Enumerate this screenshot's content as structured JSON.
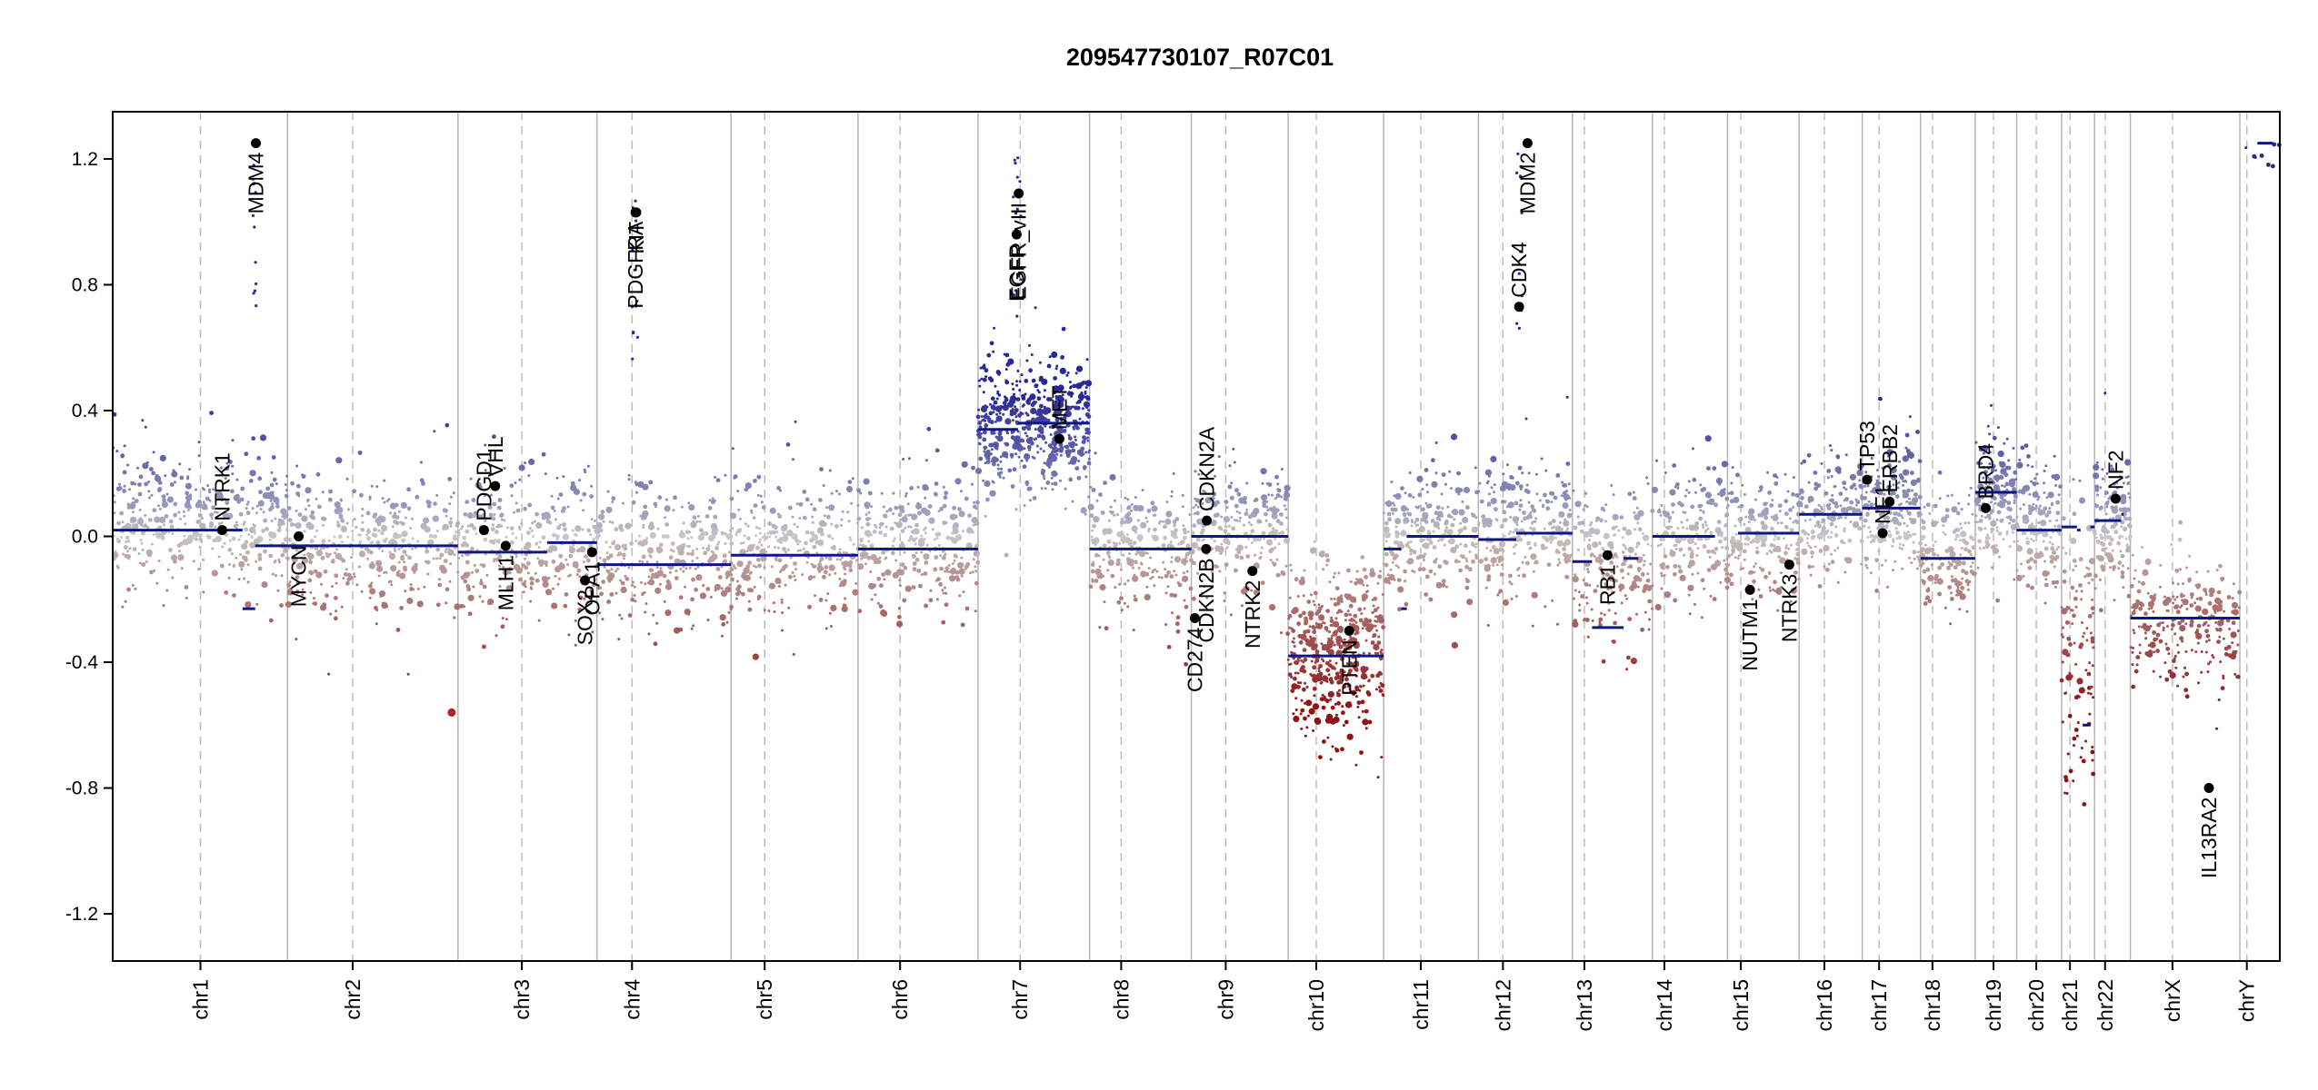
{
  "chart_data": {
    "type": "scatter",
    "title": "209547730107_R07C01",
    "xlabel": "",
    "ylabel": "",
    "ylim": [
      -1.35,
      1.35
    ],
    "yticks": [
      1.2,
      0.8,
      0.4,
      0.0,
      -0.4,
      -0.8,
      -1.2
    ],
    "ytick_labels": [
      "1.2",
      "0.8",
      "0.4",
      "0.0",
      "-0.4",
      "-0.8",
      "-1.2"
    ],
    "grid": false,
    "colors": {
      "gain": "#2b2f8f",
      "loss": "#8b1a1a",
      "neutral": "#c8c8c8",
      "segment": "#0f1787",
      "gene_point": "#000000",
      "boundary": "#bdbdbd"
    },
    "chromosomes": [
      {
        "name": "chr1",
        "start": 0,
        "end": 249,
        "centromere": 125
      },
      {
        "name": "chr2",
        "start": 249,
        "end": 492,
        "centromere": 93
      },
      {
        "name": "chr3",
        "start": 492,
        "end": 690,
        "centromere": 91
      },
      {
        "name": "chr4",
        "start": 690,
        "end": 881,
        "centromere": 50
      },
      {
        "name": "chr5",
        "start": 881,
        "end": 1062,
        "centromere": 48
      },
      {
        "name": "chr6",
        "start": 1062,
        "end": 1233,
        "centromere": 60
      },
      {
        "name": "chr7",
        "start": 1233,
        "end": 1392,
        "centromere": 60
      },
      {
        "name": "chr8",
        "start": 1392,
        "end": 1537,
        "centromere": 45
      },
      {
        "name": "chr9",
        "start": 1537,
        "end": 1675,
        "centromere": 49
      },
      {
        "name": "chr10",
        "start": 1675,
        "end": 1811,
        "centromere": 40
      },
      {
        "name": "chr11",
        "start": 1811,
        "end": 1946,
        "centromere": 53
      },
      {
        "name": "chr12",
        "start": 1946,
        "end": 2080,
        "centromere": 35
      },
      {
        "name": "chr13",
        "start": 2080,
        "end": 2194,
        "centromere": 17
      },
      {
        "name": "chr14",
        "start": 2194,
        "end": 2301,
        "centromere": 17
      },
      {
        "name": "chr15",
        "start": 2301,
        "end": 2403,
        "centromere": 19
      },
      {
        "name": "chr16",
        "start": 2403,
        "end": 2493,
        "centromere": 36
      },
      {
        "name": "chr17",
        "start": 2493,
        "end": 2576,
        "centromere": 24
      },
      {
        "name": "chr18",
        "start": 2576,
        "end": 2654,
        "centromere": 17
      },
      {
        "name": "chr19",
        "start": 2654,
        "end": 2713,
        "centromere": 26
      },
      {
        "name": "chr20",
        "start": 2713,
        "end": 2777,
        "centromere": 28
      },
      {
        "name": "chr21",
        "start": 2777,
        "end": 2824,
        "centromere": 12
      },
      {
        "name": "chr22",
        "start": 2824,
        "end": 2875,
        "centromere": 15
      },
      {
        "name": "chrX",
        "start": 2875,
        "end": 3031,
        "centromere": 60
      },
      {
        "name": "chrY",
        "start": 3031,
        "end": 3088,
        "centromere": 10
      }
    ],
    "segments": [
      {
        "start": 0,
        "end": 185,
        "value": 0.02
      },
      {
        "start": 185,
        "end": 203,
        "value": -0.23
      },
      {
        "start": 203,
        "end": 249,
        "value": -0.03
      },
      {
        "start": 249,
        "end": 492,
        "value": -0.03
      },
      {
        "start": 492,
        "end": 619,
        "value": -0.05
      },
      {
        "start": 619,
        "end": 690,
        "value": -0.02
      },
      {
        "start": 690,
        "end": 881,
        "value": -0.09
      },
      {
        "start": 881,
        "end": 1062,
        "value": -0.06
      },
      {
        "start": 1062,
        "end": 1233,
        "value": -0.04
      },
      {
        "start": 1233,
        "end": 1290,
        "value": 0.34
      },
      {
        "start": 1290,
        "end": 1392,
        "value": 0.36
      },
      {
        "start": 1392,
        "end": 1537,
        "value": -0.04
      },
      {
        "start": 1537,
        "end": 1675,
        "value": 0.0
      },
      {
        "start": 1675,
        "end": 1811,
        "value": -0.38
      },
      {
        "start": 1811,
        "end": 1836,
        "value": -0.04
      },
      {
        "start": 1836,
        "end": 1844,
        "value": -0.23
      },
      {
        "start": 1844,
        "end": 1858,
        "value": 0.0
      },
      {
        "start": 1858,
        "end": 1900,
        "value": 0.0
      },
      {
        "start": 1900,
        "end": 1946,
        "value": 0.0
      },
      {
        "start": 1946,
        "end": 2000,
        "value": -0.01
      },
      {
        "start": 2000,
        "end": 2080,
        "value": 0.01
      },
      {
        "start": 2080,
        "end": 2108,
        "value": -0.08
      },
      {
        "start": 2108,
        "end": 2153,
        "value": -0.29
      },
      {
        "start": 2153,
        "end": 2174,
        "value": -0.07
      },
      {
        "start": 2194,
        "end": 2283,
        "value": 0.0
      },
      {
        "start": 2316,
        "end": 2403,
        "value": 0.01
      },
      {
        "start": 2403,
        "end": 2493,
        "value": 0.07
      },
      {
        "start": 2493,
        "end": 2576,
        "value": 0.09
      },
      {
        "start": 2576,
        "end": 2654,
        "value": -0.07
      },
      {
        "start": 2654,
        "end": 2713,
        "value": 0.14
      },
      {
        "start": 2713,
        "end": 2777,
        "value": 0.02
      },
      {
        "start": 2777,
        "end": 2799,
        "value": 0.03
      },
      {
        "start": 2799,
        "end": 2804,
        "value": 0.02
      },
      {
        "start": 2807,
        "end": 2818,
        "value": -0.6
      },
      {
        "start": 2818,
        "end": 2824,
        "value": 0.03
      },
      {
        "start": 2824,
        "end": 2862,
        "value": 0.05
      },
      {
        "start": 2862,
        "end": 2866,
        "value": 0.07
      },
      {
        "start": 2875,
        "end": 3031,
        "value": -0.26
      },
      {
        "start": 3056,
        "end": 3078,
        "value": 1.25
      }
    ],
    "genes": [
      {
        "name": "NTRK1",
        "pos": 156,
        "value": 0.02,
        "label_side": "above"
      },
      {
        "name": "MDM4",
        "pos": 204,
        "value": 1.25,
        "label_side": "below"
      },
      {
        "name": "MYCN",
        "pos": 265,
        "value": 0.0,
        "label_side": "below"
      },
      {
        "name": "PDGD1",
        "pos": 529,
        "value": 0.02,
        "label_side": "above"
      },
      {
        "name": "VHL",
        "pos": 545,
        "value": 0.16,
        "label_side": "above"
      },
      {
        "name": "MLH1",
        "pos": 560,
        "value": -0.03,
        "label_side": "below"
      },
      {
        "name": "SOX2",
        "pos": 673,
        "value": -0.14,
        "label_side": "below"
      },
      {
        "name": "OPA1",
        "pos": 683,
        "value": -0.05,
        "label_side": "below"
      },
      {
        "name": "PDGFRA",
        "pos": 745,
        "value": 1.03,
        "label_side": "below"
      },
      {
        "name": "KIT",
        "pos": 746,
        "value": 1.03,
        "label_side": "below"
      },
      {
        "name": "EGFR",
        "pos": 1288,
        "value": 0.96,
        "label_side": "below"
      },
      {
        "name": "EGFR_vIII",
        "pos": 1291,
        "value": 1.09,
        "label_side": "below"
      },
      {
        "name": "MET",
        "pos": 1349,
        "value": 0.31,
        "label_side": "above"
      },
      {
        "name": "CD274",
        "pos": 1542,
        "value": -0.26,
        "label_side": "below"
      },
      {
        "name": "CDKN2B",
        "pos": 1558,
        "value": -0.04,
        "label_side": "below"
      },
      {
        "name": "CDKN2A",
        "pos": 1559,
        "value": 0.05,
        "label_side": "above"
      },
      {
        "name": "NTRK2",
        "pos": 1624,
        "value": -0.11,
        "label_side": "below"
      },
      {
        "name": "PTEN",
        "pos": 1762,
        "value": -0.3,
        "label_side": "below"
      },
      {
        "name": "CDK4",
        "pos": 2004,
        "value": 0.73,
        "label_side": "above"
      },
      {
        "name": "MDM2",
        "pos": 2016,
        "value": 1.25,
        "label_side": "below"
      },
      {
        "name": "RB1",
        "pos": 2130,
        "value": -0.06,
        "label_side": "below"
      },
      {
        "name": "NUTM1",
        "pos": 2333,
        "value": -0.17,
        "label_side": "below"
      },
      {
        "name": "NTRK3",
        "pos": 2389,
        "value": -0.09,
        "label_side": "below"
      },
      {
        "name": "TP53",
        "pos": 2500,
        "value": 0.18,
        "label_side": "above"
      },
      {
        "name": "NF1",
        "pos": 2522,
        "value": 0.01,
        "label_side": "above"
      },
      {
        "name": "ERBB2",
        "pos": 2532,
        "value": 0.11,
        "label_side": "above"
      },
      {
        "name": "BRD4",
        "pos": 2669,
        "value": 0.09,
        "label_side": "above"
      },
      {
        "name": "NF2",
        "pos": 2854,
        "value": 0.12,
        "label_side": "above"
      },
      {
        "name": "IL13RA2",
        "pos": 2987,
        "value": -0.8,
        "label_side": "below"
      }
    ],
    "outliers": [
      {
        "pos": 483,
        "value": -0.56
      }
    ],
    "probe_scatter": {
      "seed": 20954,
      "note_cols": [
        "chromosome_index",
        "base",
        "spread"
      ],
      "regions": [
        {
          "chr": 0,
          "base": 0.05,
          "sd": 0.11,
          "n": 420
        },
        {
          "chr": 1,
          "base": -0.02,
          "sd": 0.11,
          "n": 380
        },
        {
          "chr": 2,
          "base": -0.02,
          "sd": 0.11,
          "n": 330
        },
        {
          "chr": 3,
          "base": -0.06,
          "sd": 0.11,
          "n": 300
        },
        {
          "chr": 4,
          "base": -0.04,
          "sd": 0.11,
          "n": 290
        },
        {
          "chr": 5,
          "base": -0.02,
          "sd": 0.11,
          "n": 300
        },
        {
          "chr": 6,
          "base": 0.35,
          "sd": 0.1,
          "n": 520
        },
        {
          "chr": 7,
          "base": -0.03,
          "sd": 0.1,
          "n": 260
        },
        {
          "chr": 8,
          "base": 0.01,
          "sd": 0.11,
          "n": 240
        },
        {
          "chr": 9,
          "base": -0.36,
          "sd": 0.13,
          "n": 460
        },
        {
          "chr": 10,
          "base": 0.01,
          "sd": 0.1,
          "n": 240
        },
        {
          "chr": 11,
          "base": 0.02,
          "sd": 0.11,
          "n": 260
        },
        {
          "chr": 12,
          "base": -0.1,
          "sd": 0.12,
          "n": 200
        },
        {
          "chr": 13,
          "base": 0.01,
          "sd": 0.1,
          "n": 190
        },
        {
          "chr": 14,
          "base": 0.0,
          "sd": 0.11,
          "n": 190
        },
        {
          "chr": 15,
          "base": 0.07,
          "sd": 0.1,
          "n": 170
        },
        {
          "chr": 16,
          "base": 0.09,
          "sd": 0.1,
          "n": 200
        },
        {
          "chr": 17,
          "base": -0.06,
          "sd": 0.1,
          "n": 150
        },
        {
          "chr": 18,
          "base": 0.13,
          "sd": 0.1,
          "n": 170
        },
        {
          "chr": 19,
          "base": 0.02,
          "sd": 0.1,
          "n": 140
        },
        {
          "chr": 20,
          "base": -0.35,
          "sd": 0.25,
          "n": 110
        },
        {
          "chr": 21,
          "base": 0.05,
          "sd": 0.1,
          "n": 130
        },
        {
          "chr": 22,
          "base": -0.28,
          "sd": 0.1,
          "n": 260
        },
        {
          "chr": 23,
          "base": 1.2,
          "sd": 0.03,
          "n": 8
        }
      ]
    }
  }
}
